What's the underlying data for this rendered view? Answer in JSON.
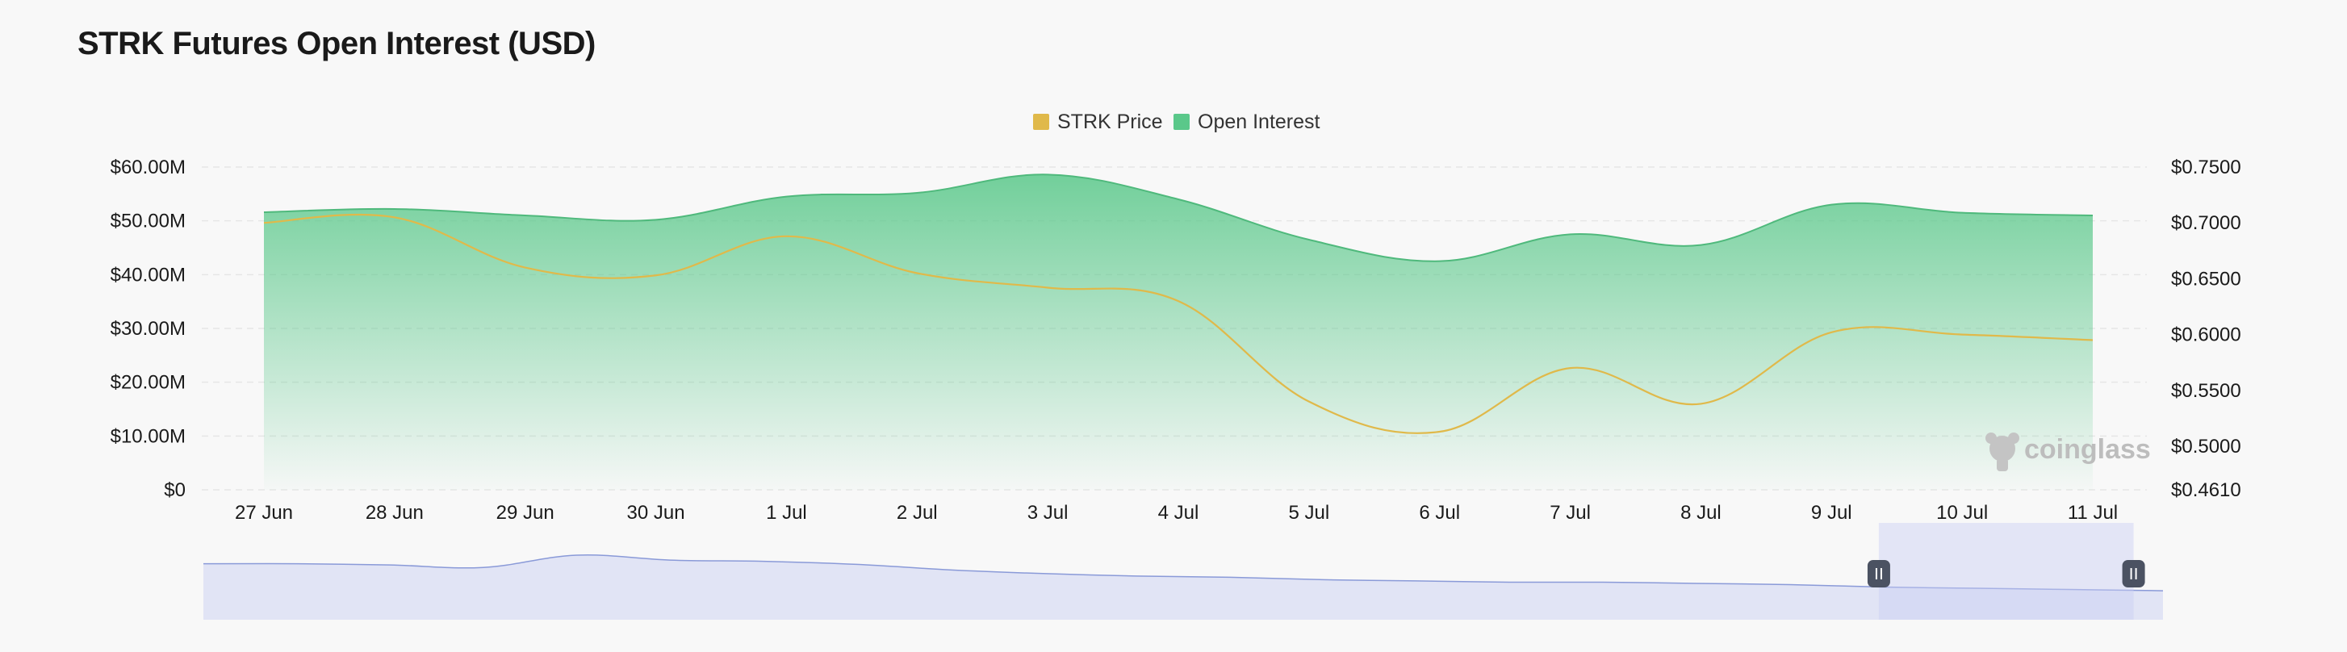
{
  "title": "STRK Futures Open Interest (USD)",
  "watermark": "coinglass",
  "chart_data": {
    "type": "area",
    "categories": [
      "27 Jun",
      "28 Jun",
      "29 Jun",
      "30 Jun",
      "1 Jul",
      "2 Jul",
      "3 Jul",
      "4 Jul",
      "5 Jul",
      "6 Jul",
      "7 Jul",
      "8 Jul",
      "9 Jul",
      "10 Jul",
      "11 Jul"
    ],
    "legend": [
      {
        "name": "STRK Price",
        "color": "#e0b94a"
      },
      {
        "name": "Open Interest",
        "color": "#5ac88a"
      }
    ],
    "legend_position": "top-center",
    "grid": true,
    "y_left": {
      "ticks": [
        "$0",
        "$10.00M",
        "$20.00M",
        "$30.00M",
        "$40.00M",
        "$50.00M",
        "$60.00M"
      ],
      "range": [
        0,
        60000000
      ]
    },
    "y_right": {
      "ticks": [
        "$0.4610",
        "$0.5000",
        "$0.5500",
        "$0.6000",
        "$0.6500",
        "$0.7000",
        "$0.7500"
      ],
      "range": [
        0.461,
        0.75
      ]
    },
    "series": [
      {
        "name": "Open Interest",
        "axis": "left",
        "type": "area",
        "color": "#5ac88a",
        "values": [
          51.6,
          52.2,
          51.0,
          50.2,
          54.5,
          55.2,
          58.6,
          54.0,
          46.5,
          42.5,
          47.5,
          45.5,
          53.0,
          51.5,
          51.0
        ]
      },
      {
        "name": "STRK Price",
        "axis": "right",
        "type": "line",
        "color": "#e0b94a",
        "values": [
          0.7,
          0.705,
          0.66,
          0.653,
          0.688,
          0.655,
          0.642,
          0.63,
          0.54,
          0.513,
          0.57,
          0.538,
          0.602,
          0.6,
          0.595
        ]
      }
    ],
    "navigator": {
      "values": [
        0.86,
        0.86,
        0.84,
        0.8,
        1.0,
        0.92,
        0.9,
        0.85,
        0.76,
        0.7,
        0.66,
        0.64,
        0.6,
        0.58,
        0.56,
        0.56,
        0.54,
        0.52,
        0.48,
        0.46,
        0.44,
        0.42
      ],
      "selection": [
        0.855,
        0.985
      ]
    }
  }
}
